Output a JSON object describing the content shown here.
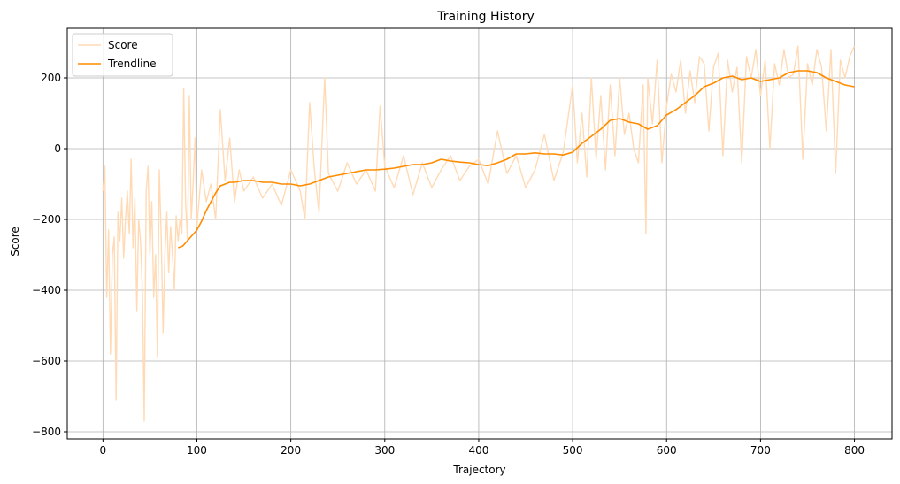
{
  "chart_data": {
    "type": "line",
    "title": "Training History",
    "xlabel": "Trajectory",
    "ylabel": "Score",
    "xlim": [
      -38,
      840
    ],
    "ylim": [
      -820,
      340
    ],
    "xticks": [
      0,
      100,
      200,
      300,
      400,
      500,
      600,
      700,
      800
    ],
    "yticks": [
      -800,
      -600,
      -400,
      -200,
      0,
      200
    ],
    "grid": true,
    "legend_position": "top-left",
    "series": [
      {
        "name": "Score",
        "color": "#ffdab5",
        "x": [
          0,
          2,
          4,
          6,
          8,
          10,
          12,
          14,
          16,
          18,
          20,
          22,
          24,
          26,
          28,
          30,
          32,
          34,
          36,
          38,
          40,
          42,
          44,
          46,
          48,
          50,
          52,
          54,
          56,
          58,
          60,
          62,
          64,
          66,
          68,
          70,
          72,
          74,
          76,
          78,
          80,
          82,
          84,
          86,
          88,
          90,
          92,
          94,
          96,
          98,
          100,
          105,
          110,
          115,
          120,
          125,
          130,
          135,
          140,
          145,
          150,
          160,
          170,
          180,
          190,
          200,
          210,
          215,
          220,
          225,
          230,
          236,
          240,
          250,
          260,
          270,
          280,
          290,
          295,
          300,
          310,
          320,
          330,
          340,
          350,
          360,
          370,
          380,
          390,
          400,
          410,
          420,
          430,
          440,
          450,
          460,
          470,
          480,
          490,
          500,
          505,
          510,
          515,
          520,
          525,
          530,
          535,
          540,
          545,
          550,
          555,
          560,
          565,
          570,
          575,
          578,
          580,
          585,
          590,
          595,
          600,
          605,
          610,
          615,
          620,
          625,
          630,
          635,
          640,
          645,
          650,
          655,
          660,
          665,
          670,
          675,
          680,
          685,
          690,
          695,
          700,
          705,
          710,
          715,
          720,
          725,
          730,
          735,
          740,
          745,
          750,
          755,
          760,
          765,
          770,
          775,
          780,
          785,
          790,
          795,
          800
        ],
        "y": [
          -120,
          -50,
          -420,
          -230,
          -580,
          -300,
          -250,
          -710,
          -180,
          -260,
          -140,
          -310,
          -200,
          -120,
          -240,
          -30,
          -280,
          -140,
          -460,
          -200,
          -260,
          -400,
          -770,
          -120,
          -50,
          -300,
          -150,
          -420,
          -300,
          -590,
          -60,
          -250,
          -520,
          -300,
          -180,
          -350,
          -220,
          -300,
          -400,
          -190,
          -260,
          -200,
          -240,
          170,
          -150,
          -260,
          150,
          -200,
          -100,
          30,
          -220,
          -60,
          -150,
          -100,
          -200,
          110,
          -90,
          30,
          -150,
          -60,
          -120,
          -80,
          -140,
          -100,
          -160,
          -60,
          -120,
          -200,
          130,
          -60,
          -180,
          200,
          -70,
          -120,
          -40,
          -100,
          -60,
          -120,
          120,
          -50,
          -110,
          -20,
          -130,
          -40,
          -110,
          -60,
          -20,
          -90,
          -50,
          -30,
          -100,
          50,
          -70,
          -20,
          -110,
          -60,
          40,
          -90,
          -10,
          180,
          -40,
          100,
          -80,
          200,
          -30,
          150,
          -60,
          180,
          -20,
          200,
          40,
          100,
          0,
          -40,
          180,
          -240,
          200,
          70,
          250,
          -40,
          120,
          210,
          160,
          250,
          100,
          220,
          130,
          260,
          240,
          50,
          230,
          270,
          -20,
          250,
          160,
          230,
          -40,
          260,
          200,
          280,
          150,
          250,
          0,
          240,
          180,
          280,
          200,
          210,
          290,
          -30,
          240,
          180,
          280,
          230,
          50,
          280,
          -70,
          250,
          200,
          260,
          290
        ]
      },
      {
        "name": "Trendline",
        "color": "#ff8c00",
        "x": [
          80,
          85,
          90,
          95,
          100,
          105,
          110,
          115,
          120,
          125,
          130,
          135,
          140,
          150,
          160,
          170,
          180,
          190,
          200,
          210,
          220,
          230,
          240,
          250,
          260,
          270,
          280,
          290,
          300,
          310,
          320,
          330,
          340,
          350,
          360,
          370,
          380,
          390,
          400,
          410,
          420,
          430,
          440,
          450,
          460,
          470,
          480,
          490,
          500,
          510,
          520,
          530,
          540,
          550,
          560,
          570,
          580,
          590,
          600,
          610,
          620,
          630,
          640,
          650,
          660,
          670,
          680,
          690,
          700,
          710,
          720,
          730,
          740,
          750,
          760,
          770,
          780,
          790,
          800
        ],
        "y": [
          -280,
          -275,
          -260,
          -245,
          -230,
          -205,
          -175,
          -150,
          -125,
          -105,
          -100,
          -95,
          -95,
          -90,
          -90,
          -95,
          -95,
          -100,
          -100,
          -105,
          -100,
          -90,
          -80,
          -75,
          -70,
          -65,
          -60,
          -60,
          -58,
          -55,
          -50,
          -45,
          -45,
          -40,
          -30,
          -35,
          -38,
          -40,
          -45,
          -48,
          -40,
          -30,
          -15,
          -15,
          -12,
          -15,
          -15,
          -18,
          -10,
          15,
          35,
          55,
          80,
          85,
          75,
          70,
          55,
          65,
          95,
          110,
          130,
          150,
          175,
          185,
          200,
          205,
          195,
          200,
          190,
          195,
          200,
          215,
          220,
          220,
          215,
          200,
          190,
          180,
          175
        ]
      }
    ]
  }
}
